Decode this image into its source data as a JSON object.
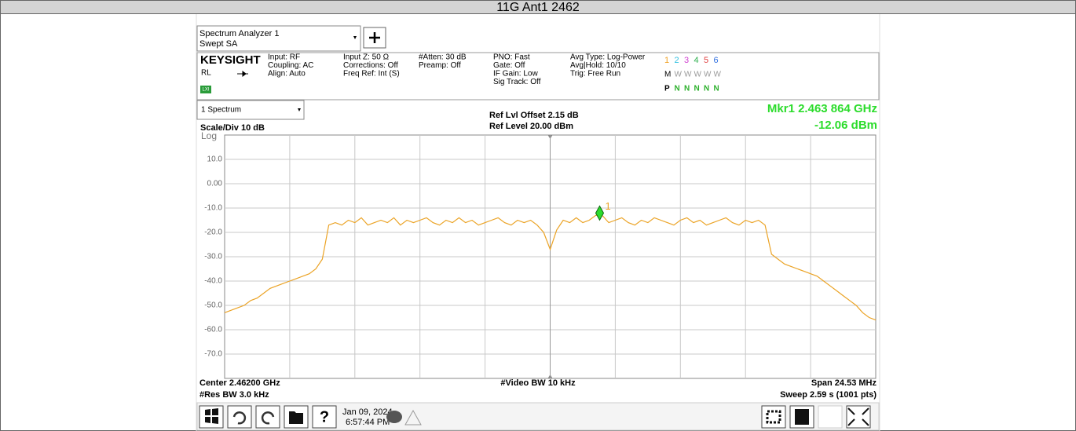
{
  "header": {
    "title": "11G Ant1 2462"
  },
  "ui": {
    "window_title": "Spectrum Analyzer 1",
    "mode": "Swept SA",
    "brand": "KEYSIGHT",
    "rl": "RL",
    "lxi": "LXI",
    "settings": [
      [
        "Input: RF",
        "Coupling: AC",
        "Align: Auto"
      ],
      [
        "Input Z: 50 Ω",
        "Corrections: Off",
        "Freq Ref: Int (S)"
      ],
      [
        "#Atten: 30 dB",
        "Preamp: Off"
      ],
      [
        "PNO: Fast",
        "Gate: Off",
        "IF Gain: Low",
        "Sig Track: Off"
      ],
      [
        "Avg Type: Log-Power",
        "Avg|Hold: 10/10",
        "Trig: Free Run"
      ]
    ],
    "traces": {
      "numbers": [
        "1",
        "2",
        "3",
        "4",
        "5",
        "6"
      ],
      "modes": [
        "M",
        "W",
        "W",
        "W",
        "W",
        "W"
      ],
      "dets": [
        "P",
        "N",
        "N",
        "N",
        "N",
        "N"
      ]
    },
    "view": "1 Spectrum",
    "scale": "Scale/Div 10 dB",
    "log": "Log",
    "ref_offset": "Ref Lvl Offset 2.15 dB",
    "ref_level": "Ref Level 20.00 dBm",
    "res_bw": "#Res BW 3.0 kHz",
    "video_bw": "#Video BW 10 kHz",
    "sweep": "Sweep 2.59 s (1001 pts)",
    "date": "Jan 09, 2024",
    "time": "6:57:44 PM",
    "help": "?"
  },
  "chart_data": {
    "type": "line",
    "color": "#eba325",
    "grid": true,
    "ylim": [
      -80,
      20
    ],
    "yticks": [
      {
        "value": 10,
        "label": "10.0"
      },
      {
        "value": 0,
        "label": "0.00"
      },
      {
        "value": -10,
        "label": "-10.0"
      },
      {
        "value": -20,
        "label": "-20.0"
      },
      {
        "value": -30,
        "label": "-30.0"
      },
      {
        "value": -40,
        "label": "-40.0"
      },
      {
        "value": -50,
        "label": "-50.0"
      },
      {
        "value": -60,
        "label": "-60.0"
      },
      {
        "value": -70,
        "label": "-70.0"
      }
    ],
    "center": {
      "value": 2462,
      "label": "Center 2.46200 GHz"
    },
    "span": {
      "value": 24.53,
      "label": "Span 24.53 MHz"
    },
    "marker": {
      "label": "1",
      "x": {
        "value": 2463.864,
        "label": "Mkr1  2.463 864 GHz"
      },
      "y": {
        "value": -12.06,
        "label": "-12.06 dBm"
      }
    },
    "values": [
      -53,
      -52,
      -51,
      -50,
      -48,
      -47,
      -45,
      -43,
      -42,
      -41,
      -40,
      -39,
      -38,
      -37,
      -35,
      -31,
      -17,
      -16,
      -17,
      -15,
      -16,
      -14,
      -17,
      -16,
      -15,
      -16,
      -14,
      -17,
      -15,
      -16,
      -15,
      -14,
      -16,
      -17,
      -15,
      -16,
      -14,
      -16,
      -15,
      -17,
      -16,
      -15,
      -14,
      -16,
      -17,
      -15,
      -16,
      -15,
      -17,
      -20,
      -27,
      -19,
      -15,
      -16,
      -14,
      -16,
      -15,
      -13,
      -13,
      -16,
      -15,
      -14,
      -16,
      -17,
      -15,
      -16,
      -14,
      -15,
      -16,
      -17,
      -15,
      -14,
      -16,
      -15,
      -17,
      -16,
      -15,
      -14,
      -16,
      -17,
      -15,
      -16,
      -15,
      -17,
      -29,
      -31,
      -33,
      -34,
      -35,
      -36,
      -37,
      -38,
      -40,
      -42,
      -44,
      -46,
      -48,
      -50,
      -53,
      -55,
      -56
    ]
  }
}
